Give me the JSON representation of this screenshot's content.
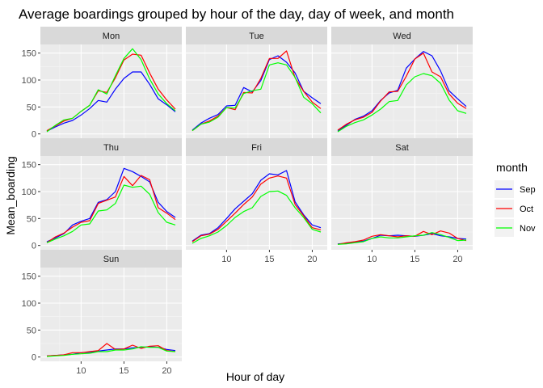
{
  "chart_data": {
    "type": "line",
    "title": "Average boardings grouped by hour of the day, day of week, and month",
    "xlabel": "Hour of day",
    "ylabel": "Mean_boarding",
    "x_ticks": [
      10,
      15,
      20
    ],
    "y_ticks": [
      0,
      50,
      100,
      150
    ],
    "xlim": [
      5.25,
      21.75
    ],
    "ylim": [
      -8,
      166
    ],
    "grid": true,
    "legend": {
      "title": "month",
      "placement": "right",
      "entries": [
        {
          "name": "Sep",
          "color": "#0000FF"
        },
        {
          "name": "Oct",
          "color": "#FF0000"
        },
        {
          "name": "Nov",
          "color": "#00FF00"
        }
      ]
    },
    "x": [
      6,
      7,
      8,
      9,
      10,
      11,
      12,
      13,
      14,
      15,
      16,
      17,
      18,
      19,
      20,
      21
    ],
    "panels": [
      {
        "name": "Mon",
        "series": [
          {
            "name": "Sep",
            "values": [
              5,
              13,
              20,
              25,
              35,
              47,
              62,
              59,
              83,
              103,
              115,
              115,
              92,
              65,
              54,
              41
            ]
          },
          {
            "name": "Oct",
            "values": [
              6,
              15,
              24,
              29,
              42,
              53,
              80,
              77,
              104,
              137,
              148,
              146,
              113,
              83,
              63,
              46
            ]
          },
          {
            "name": "Nov",
            "values": [
              4,
              16,
              26,
              29,
              42,
              53,
              82,
              74,
              108,
              140,
              158,
              138,
              102,
              74,
              56,
              43
            ]
          }
        ]
      },
      {
        "name": "Tue",
        "series": [
          {
            "name": "Sep",
            "values": [
              7,
              20,
              29,
              36,
              52,
              53,
              86,
              78,
              99,
              138,
              145,
              133,
              113,
              79,
              67,
              56
            ]
          },
          {
            "name": "Oct",
            "values": [
              6,
              18,
              24,
              33,
              49,
              45,
              77,
              76,
              103,
              140,
              140,
              154,
              104,
              79,
              59,
              47
            ]
          },
          {
            "name": "Nov",
            "values": [
              6,
              18,
              22,
              31,
              49,
              48,
              75,
              80,
              83,
              128,
              132,
              128,
              105,
              68,
              56,
              39
            ]
          }
        ]
      },
      {
        "name": "Wed",
        "series": [
          {
            "name": "Sep",
            "values": [
              5,
              16,
              27,
              33,
              43,
              62,
              76,
              81,
              122,
              139,
              153,
              145,
              117,
              80,
              65,
              51
            ]
          },
          {
            "name": "Oct",
            "values": [
              7,
              18,
              26,
              31,
              40,
              61,
              78,
              79,
              107,
              139,
              150,
              115,
              106,
              74,
              57,
              47
            ]
          },
          {
            "name": "Nov",
            "values": [
              4,
              14,
              21,
              26,
              35,
              46,
              60,
              62,
              91,
              106,
              112,
              108,
              94,
              63,
              43,
              38
            ]
          }
        ]
      },
      {
        "name": "Thu",
        "series": [
          {
            "name": "Sep",
            "values": [
              7,
              14,
              22,
              38,
              45,
              50,
              80,
              85,
              100,
              143,
              137,
              128,
              118,
              80,
              63,
              52
            ]
          },
          {
            "name": "Oct",
            "values": [
              5,
              16,
              23,
              34,
              43,
              46,
              78,
              84,
              90,
              128,
              111,
              130,
              122,
              70,
              60,
              48
            ]
          },
          {
            "name": "Nov",
            "values": [
              5,
              12,
              18,
              26,
              38,
              40,
              64,
              66,
              78,
              112,
              108,
              110,
              95,
              61,
              43,
              38
            ]
          }
        ]
      },
      {
        "name": "Fri",
        "series": [
          {
            "name": "Sep",
            "values": [
              8,
              19,
              22,
              33,
              50,
              68,
              82,
              96,
              121,
              133,
              131,
              139,
              81,
              57,
              38,
              33
            ]
          },
          {
            "name": "Oct",
            "values": [
              7,
              18,
              21,
              30,
              45,
              60,
              76,
              90,
              114,
              125,
              129,
              125,
              76,
              55,
              33,
              29
            ]
          },
          {
            "name": "Nov",
            "values": [
              4,
              13,
              18,
              25,
              37,
              52,
              63,
              70,
              91,
              100,
              101,
              93,
              70,
              52,
              30,
              25
            ]
          }
        ]
      },
      {
        "name": "Sat",
        "series": [
          {
            "name": "Sep",
            "values": [
              3,
              4,
              6,
              8,
              13,
              19,
              18,
              19,
              18,
              17,
              19,
              22,
              18,
              16,
              13,
              12
            ]
          },
          {
            "name": "Oct",
            "values": [
              2,
              5,
              7,
              10,
              17,
              20,
              18,
              16,
              18,
              17,
              26,
              20,
              27,
              23,
              13,
              9
            ]
          },
          {
            "name": "Nov",
            "values": [
              2,
              3,
              5,
              7,
              13,
              16,
              14,
              14,
              16,
              18,
              19,
              24,
              20,
              15,
              9,
              10
            ]
          }
        ]
      },
      {
        "name": "Sun",
        "series": [
          {
            "name": "Sep",
            "values": [
              2,
              3,
              4,
              5,
              8,
              9,
              11,
              13,
              15,
              15,
              17,
              18,
              19,
              18,
              14,
              12
            ]
          },
          {
            "name": "Oct",
            "values": [
              2,
              3,
              4,
              8,
              8,
              10,
              12,
              25,
              14,
              15,
              22,
              16,
              20,
              21,
              12,
              10
            ]
          },
          {
            "name": "Nov",
            "values": [
              1,
              2,
              3,
              5,
              6,
              7,
              10,
              10,
              13,
              13,
              15,
              19,
              18,
              18,
              11,
              10
            ]
          }
        ]
      }
    ]
  },
  "colors": {
    "panel_background": "#EBEBEB",
    "strip_background": "#D9D9D9",
    "major_grid": "#FFFFFF",
    "minor_grid": "#F5F5F5",
    "legend_key_background": "#F2F2F2"
  }
}
